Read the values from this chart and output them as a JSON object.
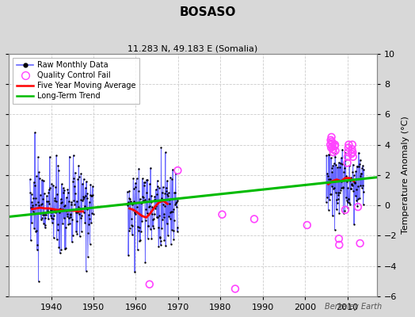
{
  "title": "BOSASO",
  "subtitle": "11.283 N, 49.183 E (Somalia)",
  "ylabel": "Temperature Anomaly (°C)",
  "watermark": "Berkeley Earth",
  "xlim": [
    1930,
    2017
  ],
  "ylim": [
    -6,
    10
  ],
  "yticks": [
    -6,
    -4,
    -2,
    0,
    2,
    4,
    6,
    8,
    10
  ],
  "xticks": [
    1940,
    1950,
    1960,
    1970,
    1980,
    1990,
    2000,
    2010
  ],
  "bg_color": "#d8d8d8",
  "plot_bg_color": "#ffffff",
  "grid_color": "#cccccc",
  "raw_line_color": "#6666ff",
  "raw_dot_color": "#000000",
  "qc_fail_color": "#ff44ff",
  "moving_avg_color": "#ff0000",
  "trend_color": "#00bb00",
  "trend": {
    "x": [
      1930,
      2017
    ],
    "y": [
      -0.75,
      1.85
    ]
  },
  "seg1_years": [
    1935,
    1936,
    1937,
    1938,
    1939,
    1940,
    1941,
    1942,
    1943,
    1944,
    1945,
    1946,
    1947,
    1948,
    1949
  ],
  "seg2_years": [
    1958,
    1959,
    1960,
    1961,
    1962,
    1963,
    1964,
    1965,
    1966,
    1967,
    1968,
    1969
  ],
  "seg3_years": [
    2005,
    2006,
    2007,
    2008,
    2009,
    2010,
    2011,
    2012,
    2013
  ],
  "seg1_seed": 10,
  "seg2_seed": 20,
  "seg3_seed": 30,
  "seg1_mean": -0.15,
  "seg2_mean": -0.25,
  "seg3_mean": 1.6,
  "seg1_std": 1.4,
  "seg2_std": 1.3,
  "seg3_std": 1.1,
  "moving_avg_seg1": {
    "x": [
      1935.5,
      1936.5,
      1937.5,
      1938.5,
      1939.5,
      1940.5,
      1941.5,
      1942.5,
      1943.5,
      1944.5,
      1945.5,
      1946.5,
      1947.5
    ],
    "y": [
      -0.25,
      -0.2,
      -0.15,
      -0.2,
      -0.2,
      -0.25,
      -0.3,
      -0.3,
      -0.35,
      -0.35,
      -0.35,
      -0.4,
      -0.4
    ]
  },
  "moving_avg_seg2": {
    "x": [
      1958.5,
      1959.5,
      1960.5,
      1961.5,
      1962.5,
      1963.5,
      1964.5,
      1965.5,
      1966.5,
      1967.5
    ],
    "y": [
      -0.2,
      -0.3,
      -0.5,
      -0.7,
      -0.8,
      -0.5,
      -0.1,
      0.2,
      0.3,
      0.1
    ]
  },
  "moving_avg_seg3": {
    "x": [
      2005.5,
      2006.5,
      2007.5,
      2008.5,
      2009.5,
      2010.5,
      2011.5
    ],
    "y": [
      1.4,
      1.6,
      1.7,
      1.6,
      1.8,
      1.8,
      1.6
    ]
  },
  "qc_x": [
    1963.25,
    1969.92,
    1980.42,
    1983.5,
    1988.0,
    2000.5,
    2006.0,
    2006.08,
    2006.17,
    2006.25,
    2006.33,
    2006.42,
    2006.5,
    2006.58,
    2006.67,
    2007.0,
    2007.08,
    2007.17,
    2008.0,
    2008.08,
    2009.5,
    2010.0,
    2010.08,
    2010.17,
    2010.25,
    2010.33,
    2011.0,
    2011.08,
    2011.17,
    2011.25,
    2011.33,
    2012.5,
    2013.0
  ],
  "qc_y": [
    -5.2,
    2.3,
    -0.6,
    -5.5,
    -0.9,
    -1.3,
    4.0,
    4.3,
    3.8,
    4.5,
    4.2,
    3.9,
    4.1,
    3.7,
    3.5,
    3.9,
    4.0,
    3.6,
    -2.2,
    -2.6,
    -0.3,
    2.8,
    3.2,
    3.5,
    3.8,
    4.0,
    3.4,
    3.7,
    4.0,
    3.5,
    3.2,
    -0.1,
    -2.5
  ]
}
